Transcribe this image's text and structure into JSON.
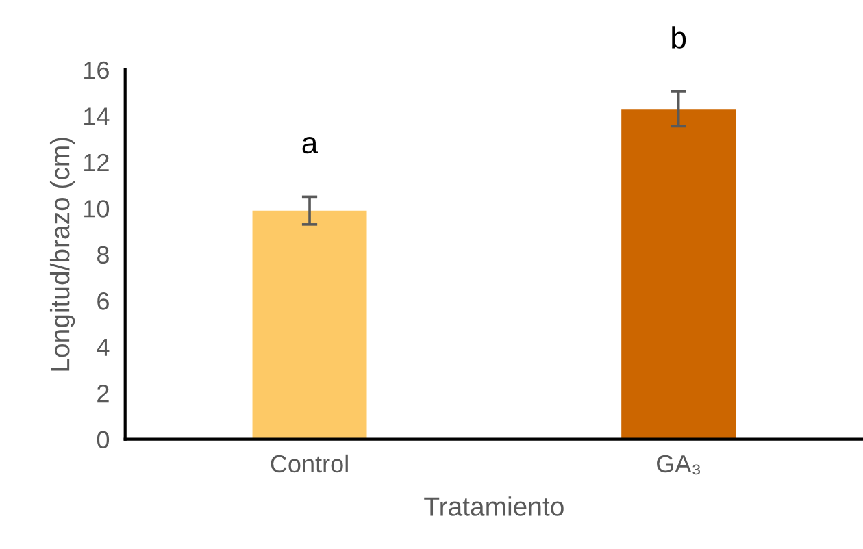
{
  "chart_data": {
    "type": "bar",
    "xlabel": "Tratamiento",
    "ylabel": "Longitud/brazo (cm)",
    "categories": [
      "Control",
      "GA₃"
    ],
    "values": [
      9.9,
      14.3
    ],
    "colors": [
      "#fdc966",
      "#cc6600"
    ],
    "errors": [
      0.6,
      0.75
    ],
    "ylim": [
      0,
      16
    ],
    "yticks": [
      0,
      2,
      4,
      6,
      8,
      10,
      12,
      14,
      16
    ],
    "grid": false,
    "legend": false,
    "annotations": [
      "a",
      "b"
    ]
  }
}
